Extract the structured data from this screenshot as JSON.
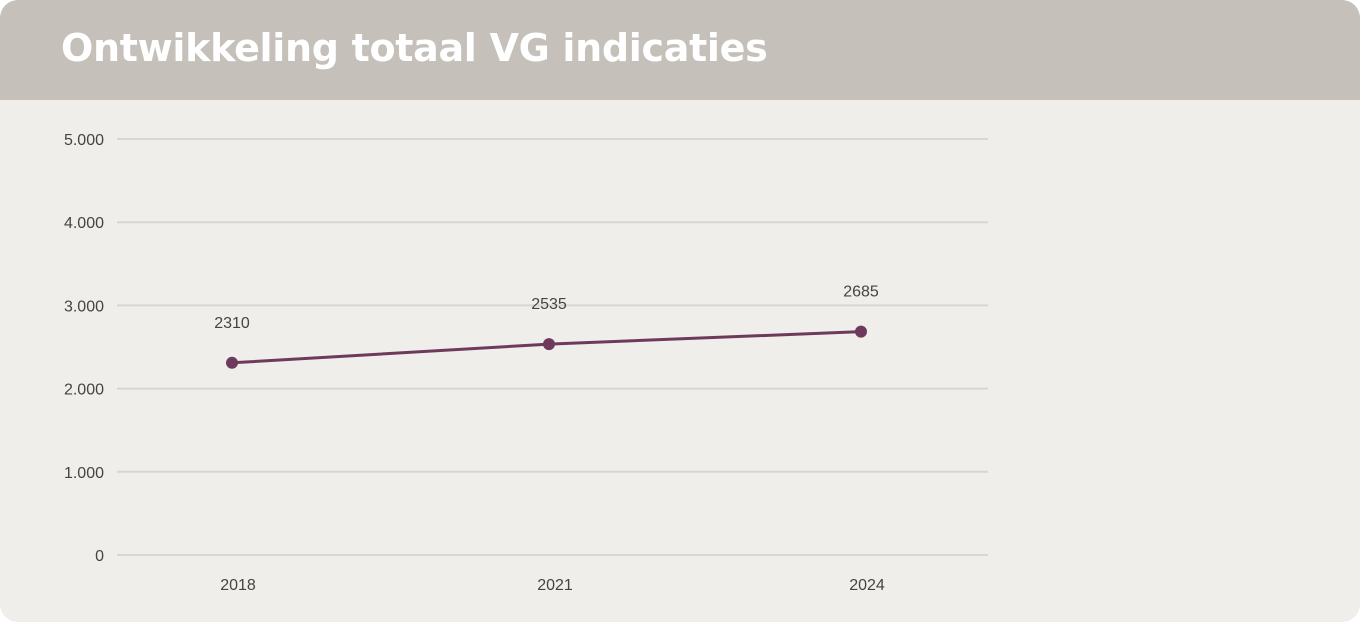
{
  "header": {
    "title": "Ontwikkeling totaal VG indicaties"
  },
  "colors": {
    "background": "#efeeea",
    "header": "#c5c1ba",
    "series": "#6e3a5c",
    "grid": "#d7d6d3"
  },
  "chart_data": {
    "type": "line",
    "title": "Ontwikkeling totaal VG indicaties",
    "xlabel": "",
    "ylabel": "",
    "categories": [
      "2018",
      "2021",
      "2024"
    ],
    "series": [
      {
        "values": [
          2310,
          2535,
          2685
        ]
      }
    ],
    "data_labels": [
      "2310",
      "2535",
      "2685"
    ],
    "ylim": [
      0,
      5000
    ],
    "yticks": [
      0,
      1000,
      2000,
      3000,
      4000,
      5000
    ],
    "ytick_labels": [
      "0",
      "1.000",
      "2.000",
      "3.000",
      "4.000",
      "5.000"
    ],
    "grid": true,
    "legend": "none"
  }
}
